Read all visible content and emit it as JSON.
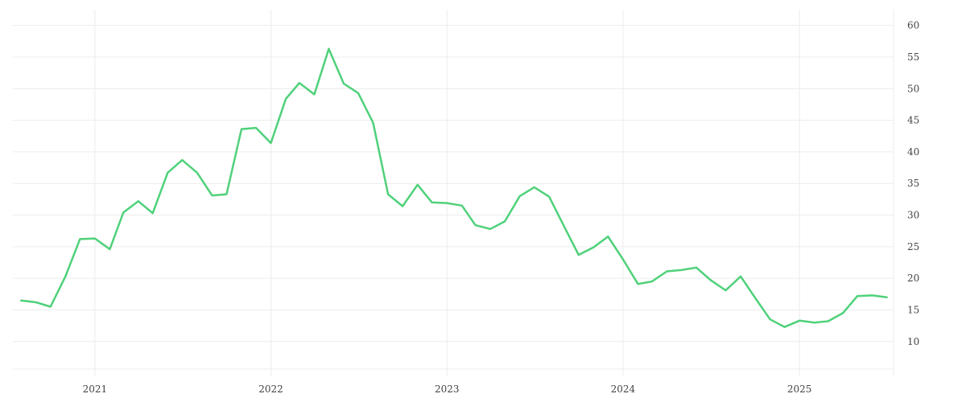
{
  "chart_data": {
    "type": "line",
    "title": "",
    "xlabel": "",
    "ylabel": "",
    "grid": true,
    "y_axis_side": "right",
    "ylim": [
      4.5,
      62.5
    ],
    "y_ticks": [
      10,
      15,
      20,
      25,
      30,
      35,
      40,
      45,
      50,
      55,
      60
    ],
    "xlim": [
      "2020-07-15",
      "2025-07-15"
    ],
    "x_ticks": [
      {
        "date": "2021-01-01",
        "label": "2021"
      },
      {
        "date": "2022-01-01",
        "label": "2022"
      },
      {
        "date": "2023-01-01",
        "label": "2023"
      },
      {
        "date": "2024-01-01",
        "label": "2024"
      },
      {
        "date": "2025-01-01",
        "label": "2025"
      }
    ],
    "series": [
      {
        "color": "#4fd17a",
        "points": [
          [
            "2020-08-01",
            16.5
          ],
          [
            "2020-09-01",
            16.2
          ],
          [
            "2020-10-01",
            15.5
          ],
          [
            "2020-11-01",
            20.3
          ],
          [
            "2020-12-01",
            26.2
          ],
          [
            "2021-01-01",
            26.3
          ],
          [
            "2021-02-01",
            24.6
          ],
          [
            "2021-03-01",
            30.4
          ],
          [
            "2021-04-01",
            32.2
          ],
          [
            "2021-05-01",
            30.3
          ],
          [
            "2021-06-01",
            36.7
          ],
          [
            "2021-07-01",
            38.7
          ],
          [
            "2021-08-01",
            36.7
          ],
          [
            "2021-09-01",
            33.1
          ],
          [
            "2021-10-01",
            33.3
          ],
          [
            "2021-11-01",
            43.6
          ],
          [
            "2021-12-01",
            43.8
          ],
          [
            "2022-01-01",
            41.4
          ],
          [
            "2022-02-01",
            48.4
          ],
          [
            "2022-03-01",
            50.9
          ],
          [
            "2022-04-01",
            49.1
          ],
          [
            "2022-05-01",
            56.3
          ],
          [
            "2022-06-01",
            50.8
          ],
          [
            "2022-07-01",
            49.3
          ],
          [
            "2022-08-01",
            44.6
          ],
          [
            "2022-09-01",
            33.3
          ],
          [
            "2022-10-01",
            31.4
          ],
          [
            "2022-11-01",
            34.8
          ],
          [
            "2022-12-01",
            32.0
          ],
          [
            "2023-01-01",
            31.9
          ],
          [
            "2023-02-01",
            31.5
          ],
          [
            "2023-03-01",
            28.4
          ],
          [
            "2023-04-01",
            27.8
          ],
          [
            "2023-05-01",
            29.0
          ],
          [
            "2023-06-01",
            33.0
          ],
          [
            "2023-07-01",
            34.4
          ],
          [
            "2023-08-01",
            32.9
          ],
          [
            "2023-09-01",
            28.2
          ],
          [
            "2023-10-01",
            23.7
          ],
          [
            "2023-11-01",
            24.9
          ],
          [
            "2023-12-01",
            26.6
          ],
          [
            "2024-01-01",
            23.0
          ],
          [
            "2024-02-01",
            19.1
          ],
          [
            "2024-03-01",
            19.5
          ],
          [
            "2024-04-01",
            21.1
          ],
          [
            "2024-05-01",
            21.3
          ],
          [
            "2024-06-01",
            21.7
          ],
          [
            "2024-07-01",
            19.7
          ],
          [
            "2024-08-01",
            18.1
          ],
          [
            "2024-09-01",
            20.3
          ],
          [
            "2024-10-01",
            16.9
          ],
          [
            "2024-11-01",
            13.5
          ],
          [
            "2024-12-01",
            12.3
          ],
          [
            "2025-01-01",
            13.3
          ],
          [
            "2025-02-01",
            13.0
          ],
          [
            "2025-03-01",
            13.2
          ],
          [
            "2025-04-01",
            14.5
          ],
          [
            "2025-05-01",
            17.2
          ],
          [
            "2025-06-01",
            17.3
          ],
          [
            "2025-07-01",
            17.0
          ]
        ]
      }
    ]
  }
}
